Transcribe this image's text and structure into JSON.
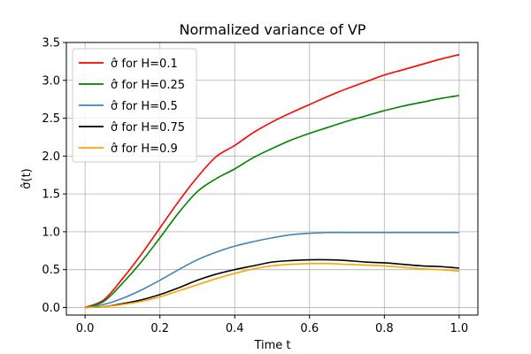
{
  "chart_data": {
    "type": "line",
    "title": "Normalized variance of VP",
    "xlabel": "Time t",
    "ylabel": "σ̂(t)",
    "xlim": [
      -0.05,
      1.05
    ],
    "ylim": [
      -0.1,
      3.5
    ],
    "grid": true,
    "legend_position": "top-left",
    "x_ticks": [
      0.0,
      0.2,
      0.4,
      0.6,
      0.8,
      1.0
    ],
    "x_tick_labels": [
      "0.0",
      "0.2",
      "0.4",
      "0.6",
      "0.8",
      "1.0"
    ],
    "y_ticks": [
      0.0,
      0.5,
      1.0,
      1.5,
      2.0,
      2.5,
      3.0,
      3.5
    ],
    "y_tick_labels": [
      "0.0",
      "0.5",
      "1.0",
      "1.5",
      "2.0",
      "2.5",
      "3.0",
      "3.5"
    ],
    "x": [
      0.0,
      0.05,
      0.1,
      0.15,
      0.2,
      0.25,
      0.3,
      0.35,
      0.4,
      0.45,
      0.5,
      0.55,
      0.6,
      0.65,
      0.7,
      0.75,
      0.8,
      0.85,
      0.9,
      0.95,
      1.0
    ],
    "series": [
      {
        "name": "σ̂ for H=0.1",
        "legend_prefix": "σ̂",
        "legend_suffix": " for H=0.1",
        "color": "#ff0000",
        "values": [
          0.0,
          0.1,
          0.38,
          0.7,
          1.05,
          1.4,
          1.72,
          1.99,
          2.14,
          2.31,
          2.45,
          2.57,
          2.68,
          2.79,
          2.89,
          2.98,
          3.07,
          3.14,
          3.21,
          3.28,
          3.34
        ]
      },
      {
        "name": "σ̂ for H=0.25",
        "legend_prefix": "σ̂",
        "legend_suffix": " for H=0.25",
        "color": "#008000",
        "values": [
          0.0,
          0.08,
          0.32,
          0.6,
          0.92,
          1.25,
          1.53,
          1.7,
          1.83,
          1.98,
          2.1,
          2.21,
          2.3,
          2.38,
          2.46,
          2.53,
          2.6,
          2.66,
          2.71,
          2.76,
          2.8
        ]
      },
      {
        "name": "σ̂ for H=0.5",
        "legend_prefix": "σ̂",
        "legend_suffix": " for H=0.5",
        "color": "#4682b4",
        "values": [
          0.0,
          0.04,
          0.12,
          0.23,
          0.36,
          0.5,
          0.63,
          0.73,
          0.81,
          0.87,
          0.92,
          0.96,
          0.98,
          0.99,
          0.99,
          0.99,
          0.99,
          0.99,
          0.99,
          0.99,
          0.99
        ]
      },
      {
        "name": "σ̂ for H=0.75",
        "legend_prefix": "σ̂",
        "legend_suffix": " for H=0.75",
        "color": "#000000",
        "values": [
          0.0,
          0.01,
          0.05,
          0.1,
          0.17,
          0.26,
          0.36,
          0.44,
          0.5,
          0.55,
          0.6,
          0.62,
          0.63,
          0.63,
          0.62,
          0.6,
          0.59,
          0.57,
          0.55,
          0.54,
          0.52
        ]
      },
      {
        "name": "σ̂ for H=0.9",
        "legend_prefix": "σ̂",
        "legend_suffix": " for H=0.9",
        "color": "#ffa500",
        "values": [
          0.0,
          0.01,
          0.04,
          0.08,
          0.14,
          0.22,
          0.3,
          0.38,
          0.45,
          0.51,
          0.55,
          0.57,
          0.58,
          0.58,
          0.57,
          0.56,
          0.55,
          0.53,
          0.51,
          0.5,
          0.48
        ]
      }
    ]
  }
}
